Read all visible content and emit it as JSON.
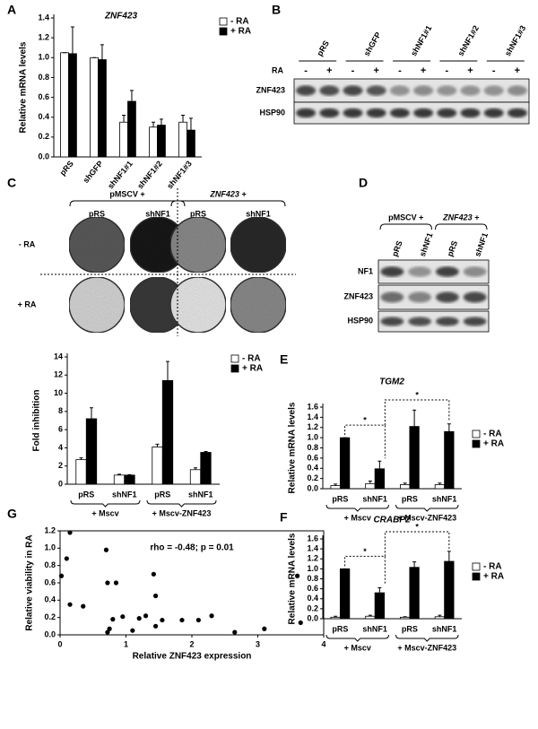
{
  "panel_letters": [
    "A",
    "B",
    "C",
    "D",
    "E",
    "F",
    "G"
  ],
  "chart_data": [
    {
      "type": "bar",
      "title": "ZNF423",
      "ylabel": "Relative mRNA levels",
      "categories": [
        "pRS",
        "shGFP",
        "shNF1#1",
        "shNF1#2",
        "shNF1#3"
      ],
      "series": [
        {
          "name": "- RA",
          "color": "#ffffff",
          "values": [
            1.05,
            1.0,
            0.35,
            0.3,
            0.35
          ],
          "errors": [
            0,
            0,
            0.07,
            0.05,
            0.07
          ]
        },
        {
          "name": "+ RA",
          "color": "#000000",
          "values": [
            1.04,
            0.98,
            0.56,
            0.32,
            0.27
          ],
          "errors": [
            0.27,
            0.15,
            0.11,
            0.06,
            0.12
          ]
        }
      ],
      "ylim": [
        0,
        1.4
      ],
      "yticks": [
        {
          "value": 0,
          "label": "0.0"
        },
        0.2,
        0.4,
        0.6,
        0.8,
        {
          "value": 1,
          "label": "1.0"
        },
        1.2,
        1.4
      ]
    },
    {
      "type": "bar",
      "ylabel": "Fold inhibition",
      "categories": [
        "pRS",
        "shNF1",
        "pRS",
        "shNF1"
      ],
      "groups": [
        "+ Mscv",
        "+ Mscv-ZNF423"
      ],
      "series": [
        {
          "name": "- RA",
          "color": "#ffffff",
          "values": [
            2.7,
            1.0,
            4.1,
            1.6
          ],
          "errors": [
            0.2,
            0.1,
            0.3,
            0.2
          ]
        },
        {
          "name": "+ RA",
          "color": "#000000",
          "values": [
            7.2,
            1.0,
            11.4,
            3.5
          ],
          "errors": [
            1.2,
            0.05,
            2.1,
            0.1
          ]
        }
      ],
      "ylim": [
        0,
        14
      ],
      "yticks": [
        0,
        2,
        4,
        6,
        8,
        10,
        12,
        14
      ]
    },
    {
      "type": "bar",
      "title": "TGM2",
      "ylabel": "Relative mRNA levels",
      "categories": [
        "pRS",
        "shNF1",
        "pRS",
        "shNF1"
      ],
      "groups": [
        "+ Mscv",
        "+ Mscv-ZNF423"
      ],
      "annotations": [
        "*",
        "*"
      ],
      "series": [
        {
          "name": "- RA",
          "color": "#ffffff",
          "values": [
            0.06,
            0.1,
            0.08,
            0.08
          ],
          "errors": [
            0.03,
            0.05,
            0.03,
            0.03
          ]
        },
        {
          "name": "+ RA",
          "color": "#000000",
          "values": [
            1.0,
            0.39,
            1.22,
            1.12
          ],
          "errors": [
            0,
            0.15,
            0.32,
            0.15
          ]
        }
      ],
      "ylim": [
        0,
        1.6
      ],
      "yticks": [
        {
          "value": 0,
          "label": "0.0"
        },
        0.2,
        0.4,
        0.6,
        0.8,
        {
          "value": 1,
          "label": "1.0"
        },
        1.2,
        1.4,
        1.6
      ]
    },
    {
      "type": "bar",
      "title": "CRABP2",
      "ylabel": "Relative mRNA levels",
      "categories": [
        "pRS",
        "shNF1",
        "pRS",
        "shNF1"
      ],
      "groups": [
        "+ Mscv",
        "+ Mscv-ZNF423"
      ],
      "annotations": [
        "*",
        "*"
      ],
      "series": [
        {
          "name": "- RA",
          "color": "#ffffff",
          "values": [
            0.03,
            0.05,
            0.03,
            0.04
          ],
          "errors": [
            0.02,
            0.02,
            0.01,
            0.03
          ]
        },
        {
          "name": "+ RA",
          "color": "#000000",
          "values": [
            1.0,
            0.52,
            1.03,
            1.15
          ],
          "errors": [
            0,
            0.1,
            0.11,
            0.2
          ]
        }
      ],
      "ylim": [
        0,
        1.6
      ],
      "yticks": [
        {
          "value": 0,
          "label": "0.0"
        },
        0.2,
        0.4,
        0.6,
        0.8,
        {
          "value": 1,
          "label": "1.0"
        },
        1.2,
        1.4,
        1.6
      ]
    },
    {
      "type": "scatter",
      "title": "rho = -0.48; p = 0.01",
      "xlabel": "Relative ZNF423 expression",
      "ylabel": "Relative viability in RA",
      "x": [
        0.02,
        0.1,
        0.15,
        0.15,
        0.35,
        0.7,
        0.72,
        0.85,
        0.75,
        0.8,
        0.72,
        0.95,
        1.1,
        1.2,
        1.3,
        1.42,
        1.45,
        1.45,
        1.55,
        1.85,
        2.1,
        2.3,
        2.65,
        3.1,
        3.6,
        3.65
      ],
      "values": [
        0.68,
        0.88,
        1.18,
        0.35,
        0.33,
        0.98,
        0.6,
        0.6,
        0.07,
        0.18,
        0.03,
        0.21,
        0.05,
        0.19,
        0.22,
        0.7,
        0.45,
        0.1,
        0.17,
        0.17,
        0.17,
        0.22,
        0.03,
        0.07,
        0.68,
        0.14
      ],
      "color": "#000000",
      "xlim": [
        0,
        4
      ],
      "xticks": [
        0,
        1,
        2,
        3,
        4
      ],
      "ylim": [
        0,
        1.2
      ],
      "yticks": [
        {
          "value": 0,
          "label": "0.0"
        },
        0.2,
        0.4,
        0.6,
        0.8,
        {
          "value": 1,
          "label": "1.0"
        },
        1.2
      ]
    }
  ],
  "blot_b": {
    "lanes": [
      "pRS",
      "shGFP",
      "shNF1#1",
      "shNF1#2",
      "shNF1#3"
    ],
    "ra_label": "RA",
    "ra_marks": [
      "-",
      "+"
    ],
    "rows": [
      "ZNF423",
      "HSP90"
    ]
  },
  "images_c": {
    "groups": [
      "pMSCV +",
      "ZNF423 +"
    ],
    "lanes": [
      "pRS",
      "shNF1",
      "pRS",
      "shNF1"
    ],
    "rows": [
      "- RA",
      "+ RA"
    ]
  },
  "blot_d": {
    "groups": [
      "pMSCV +",
      "ZNF423 +"
    ],
    "lanes": [
      "pRS",
      "shNF1",
      "pRS",
      "shNF1"
    ],
    "rows": [
      "NF1",
      "ZNF423",
      "HSP90"
    ]
  }
}
